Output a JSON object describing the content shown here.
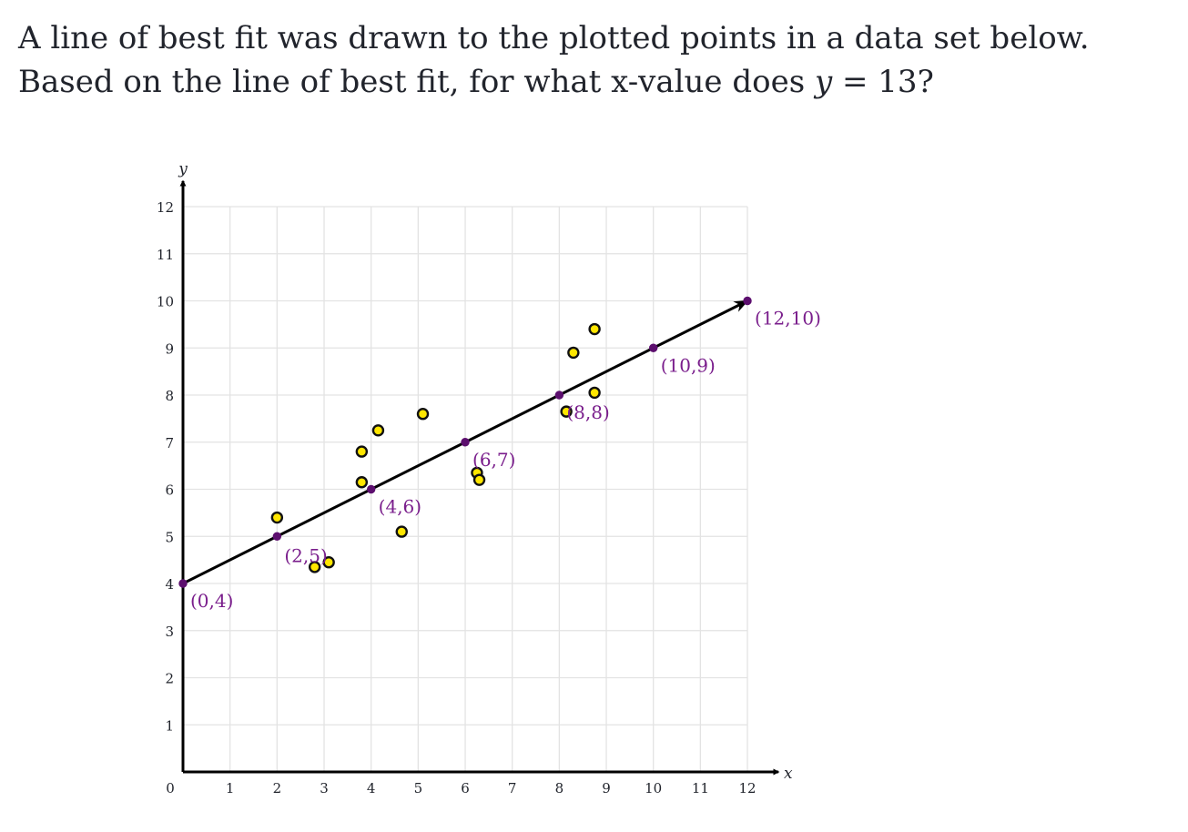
{
  "question": {
    "text_before": "A line of best fit was drawn to the plotted points in a data set below. Based on the line of best fit, for what x-value does ",
    "math_var": "y",
    "math_eq": " = ",
    "math_val": "13",
    "text_after": "?"
  },
  "chart_data": {
    "type": "scatter",
    "xlabel": "x",
    "ylabel": "y",
    "xlim": [
      0,
      12
    ],
    "ylim": [
      0,
      12
    ],
    "xticks": [
      0,
      1,
      2,
      3,
      4,
      5,
      6,
      7,
      8,
      9,
      10,
      11,
      12
    ],
    "yticks": [
      1,
      2,
      3,
      4,
      5,
      6,
      7,
      8,
      9,
      10,
      11,
      12
    ],
    "x_tick_labels": [
      "0",
      "1",
      "2",
      "3",
      "4",
      "5",
      "6",
      "7",
      "8",
      "9",
      "10",
      "11",
      "12"
    ],
    "y_tick_labels": [
      "1",
      "2",
      "3",
      "4",
      "5",
      "6",
      "7",
      "8",
      "9",
      "10",
      "11",
      "12"
    ],
    "grid": true,
    "scatter_points": [
      {
        "x": 2.0,
        "y": 5.4
      },
      {
        "x": 2.8,
        "y": 4.35
      },
      {
        "x": 3.1,
        "y": 4.45
      },
      {
        "x": 3.8,
        "y": 6.15
      },
      {
        "x": 3.8,
        "y": 6.8
      },
      {
        "x": 4.15,
        "y": 7.25
      },
      {
        "x": 4.65,
        "y": 5.1
      },
      {
        "x": 5.1,
        "y": 7.6
      },
      {
        "x": 6.25,
        "y": 6.35
      },
      {
        "x": 6.3,
        "y": 6.2
      },
      {
        "x": 8.15,
        "y": 7.65
      },
      {
        "x": 8.3,
        "y": 8.9
      },
      {
        "x": 8.75,
        "y": 8.05
      },
      {
        "x": 8.75,
        "y": 9.4
      }
    ],
    "line": {
      "from": [
        0,
        4
      ],
      "to": [
        12,
        10
      ]
    },
    "line_points": [
      {
        "x": 0,
        "y": 4,
        "label": "(0,4)"
      },
      {
        "x": 2,
        "y": 5,
        "label": "(2,5)"
      },
      {
        "x": 4,
        "y": 6,
        "label": "(4,6)"
      },
      {
        "x": 6,
        "y": 7,
        "label": "(6,7)"
      },
      {
        "x": 8,
        "y": 8,
        "label": "(8,8)"
      },
      {
        "x": 10,
        "y": 9,
        "label": "(10,9)"
      },
      {
        "x": 12,
        "y": 10,
        "label": "(12,10)"
      }
    ],
    "colors": {
      "scatter_fill": "#ffe600",
      "scatter_stroke": "#111111",
      "line": "#000000",
      "line_point": "#5c0f6e",
      "line_label": "#7a1e8c",
      "grid": "#e3e3e3",
      "axis": "#000000"
    }
  }
}
